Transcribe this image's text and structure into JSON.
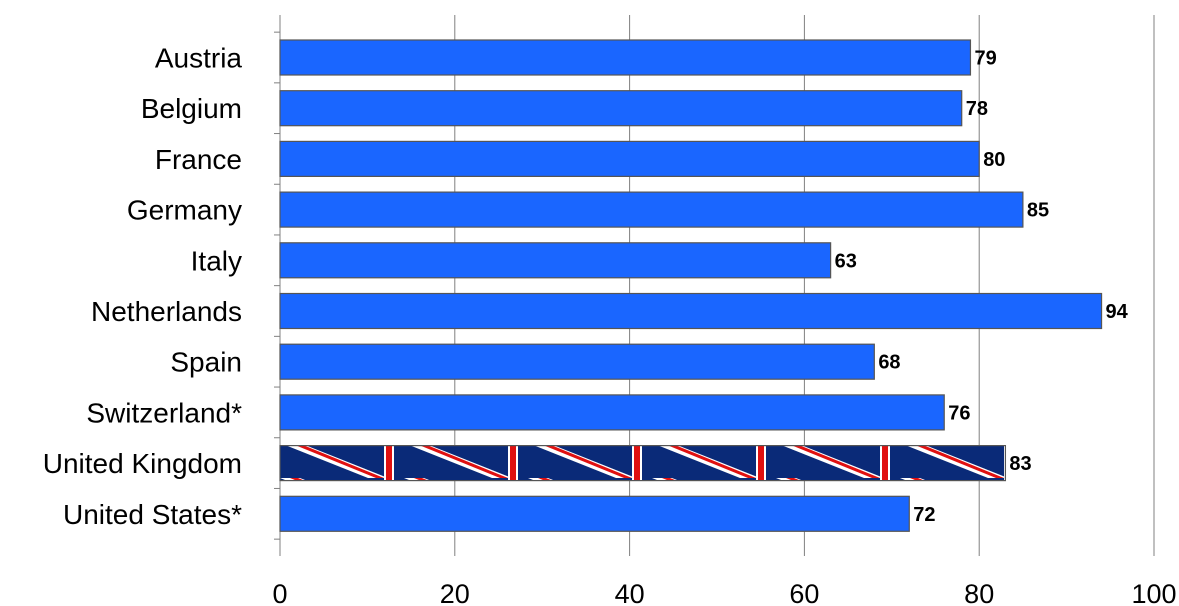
{
  "chart_data": {
    "type": "bar",
    "orientation": "horizontal",
    "title": "",
    "xlabel": "",
    "ylabel": "",
    "xlim": [
      0,
      100
    ],
    "x_ticks": [
      0,
      20,
      40,
      60,
      80,
      100
    ],
    "grid": "vertical",
    "legend": "none",
    "categories": [
      "Austria",
      "Belgium",
      "France",
      "Germany",
      "Italy",
      "Netherlands",
      "Spain",
      "Switzerland*",
      "United Kingdom",
      "United States*"
    ],
    "values": [
      79,
      78,
      80,
      85,
      63,
      94,
      68,
      76,
      83,
      72
    ],
    "data_labels": [
      "79",
      "78",
      "80",
      "85",
      "63",
      "94",
      "68",
      "76",
      "83",
      "72"
    ],
    "bar_fill": [
      "solid",
      "solid",
      "solid",
      "solid",
      "solid",
      "solid",
      "solid",
      "solid",
      "union-jack-pattern",
      "solid"
    ],
    "colors": {
      "bar": "#1a66ff",
      "bar_border": "#555555",
      "grid": "#808080",
      "flag_blue": "#0a2a78",
      "flag_red": "#e01010",
      "flag_white": "#ffffff"
    }
  }
}
